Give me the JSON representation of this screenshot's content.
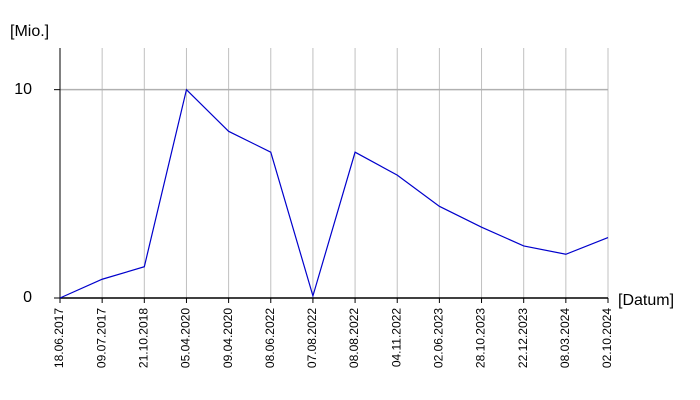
{
  "chart_data": {
    "type": "line",
    "y_label": "[Mio.]",
    "x_label": "[Datum]",
    "categories": [
      "18.06.2017",
      "09.07.2017",
      "21.10.2018",
      "05.04.2020",
      "09.04.2020",
      "08.06.2022",
      "07.08.2022",
      "08.08.2022",
      "04.11.2022",
      "02.06.2023",
      "28.10.2023",
      "22.12.2023",
      "08.03.2024",
      "02.10.2024"
    ],
    "values": [
      0,
      0.9,
      1.5,
      10,
      8,
      7,
      0.1,
      7,
      5.9,
      4.4,
      3.4,
      2.5,
      2.1,
      2.9
    ],
    "color": "#0000cc",
    "ylim": [
      0,
      12
    ],
    "yticks": [
      0,
      10
    ],
    "grid": true
  }
}
